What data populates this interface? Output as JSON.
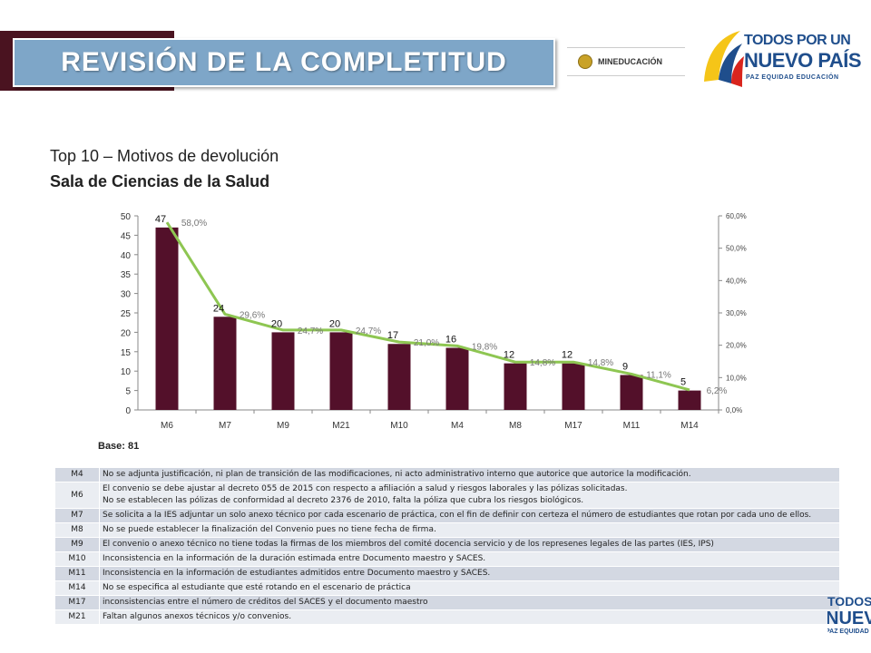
{
  "header": {
    "title": "REVISIÓN DE LA COMPLETITUD",
    "logo_mineducacion": "MINEDUCACIÓN",
    "logo_tpnp_line1": "TODOS POR UN",
    "logo_tpnp_line2": "NUEVO PAÍS",
    "logo_tpnp_line3": "PAZ EQUIDAD EDUCACIÓN"
  },
  "subtitle": {
    "line1": "Top 10 – Motivos de devolución",
    "line2": "Sala de Ciencias de la Salud"
  },
  "colors": {
    "bar": "#53102a",
    "line": "#8ec652",
    "banner": "#7ea6c8",
    "banner_shadow": "#4a1320"
  },
  "chart_data": {
    "type": "bar",
    "categories": [
      "M6",
      "M7",
      "M9",
      "M21",
      "M10",
      "M4",
      "M8",
      "M17",
      "M11",
      "M14"
    ],
    "series": [
      {
        "values": [
          47,
          24,
          20,
          20,
          17,
          16,
          12,
          12,
          9,
          5
        ],
        "labels": [
          "47",
          "24",
          "20",
          "20",
          "17",
          "16",
          "12",
          "12",
          "9",
          "5"
        ]
      },
      {
        "values": [
          58.0,
          29.6,
          24.7,
          24.7,
          21.0,
          19.8,
          14.8,
          14.8,
          11.1,
          6.2
        ],
        "labels": [
          "58,0%",
          "29,6%",
          "24,7%",
          "24,7%",
          "21,0%",
          "19,8%",
          "14,8%",
          "14,8%",
          "11,1%",
          "6,2%"
        ],
        "type": "line",
        "axis": "right"
      }
    ],
    "y_ticks": [
      "0",
      "5",
      "10",
      "15",
      "20",
      "25",
      "30",
      "35",
      "40",
      "45",
      "50"
    ],
    "y2_ticks": [
      "0,0%",
      "10,0%",
      "20,0%",
      "30,0%",
      "40,0%",
      "50,0%",
      "60,0%"
    ],
    "ylim": [
      0,
      50
    ],
    "y2lim": [
      0,
      60
    ],
    "grid": false,
    "legend": "none"
  },
  "base_label": "Base: 81",
  "table": {
    "rows": [
      {
        "code": "M4",
        "text": [
          "No  se adjunta   justificación, ni plan de transición de las  modificaciones, ni acto administrativo  interno que autorice que autorice la modificación."
        ]
      },
      {
        "code": "M6",
        "text": [
          "El convenio se debe ajustar al decreto 055 de 2015 con respecto a afiliación a salud y riesgos laborales y las pólizas solicitadas.",
          "No se establecen  las pólizas  de conformidad  al decreto  2376  de 2010, falta la póliza que cubra los riesgos biológicos."
        ]
      },
      {
        "code": "M7",
        "text": [
          "Se solicita a la IES adjuntar un solo anexo técnico por cada escenario de práctica, con el fin de definir con certeza el número de estudiantes que rotan por cada uno de ellos."
        ]
      },
      {
        "code": "M8",
        "text": [
          " No se puede establecer la finalización del Convenio pues no tiene fecha de firma."
        ]
      },
      {
        "code": "M9",
        "text": [
          "El convenio o anexo técnico no tiene todas la firmas de los miembros del comité docencia servicio y de los represenes legales de las partes (IES, IPS)"
        ]
      },
      {
        "code": "M10",
        "text": [
          "Inconsistencia en la información de la duración estimada entre Documento maestro y SACES."
        ]
      },
      {
        "code": "M11",
        "text": [
          "Inconsistencia en la información de estudiantes admitidos entre Documento maestro y SACES."
        ]
      },
      {
        "code": "M14",
        "text": [
          "No se especifica al estudiante que esté rotando en el escenario de práctica"
        ]
      },
      {
        "code": "M17",
        "text": [
          "inconsistencias entre el número de créditos del SACES y el documento maestro"
        ]
      },
      {
        "code": "M21",
        "text": [
          "Faltan algunos anexos técnicos y/o convenios."
        ]
      }
    ]
  }
}
